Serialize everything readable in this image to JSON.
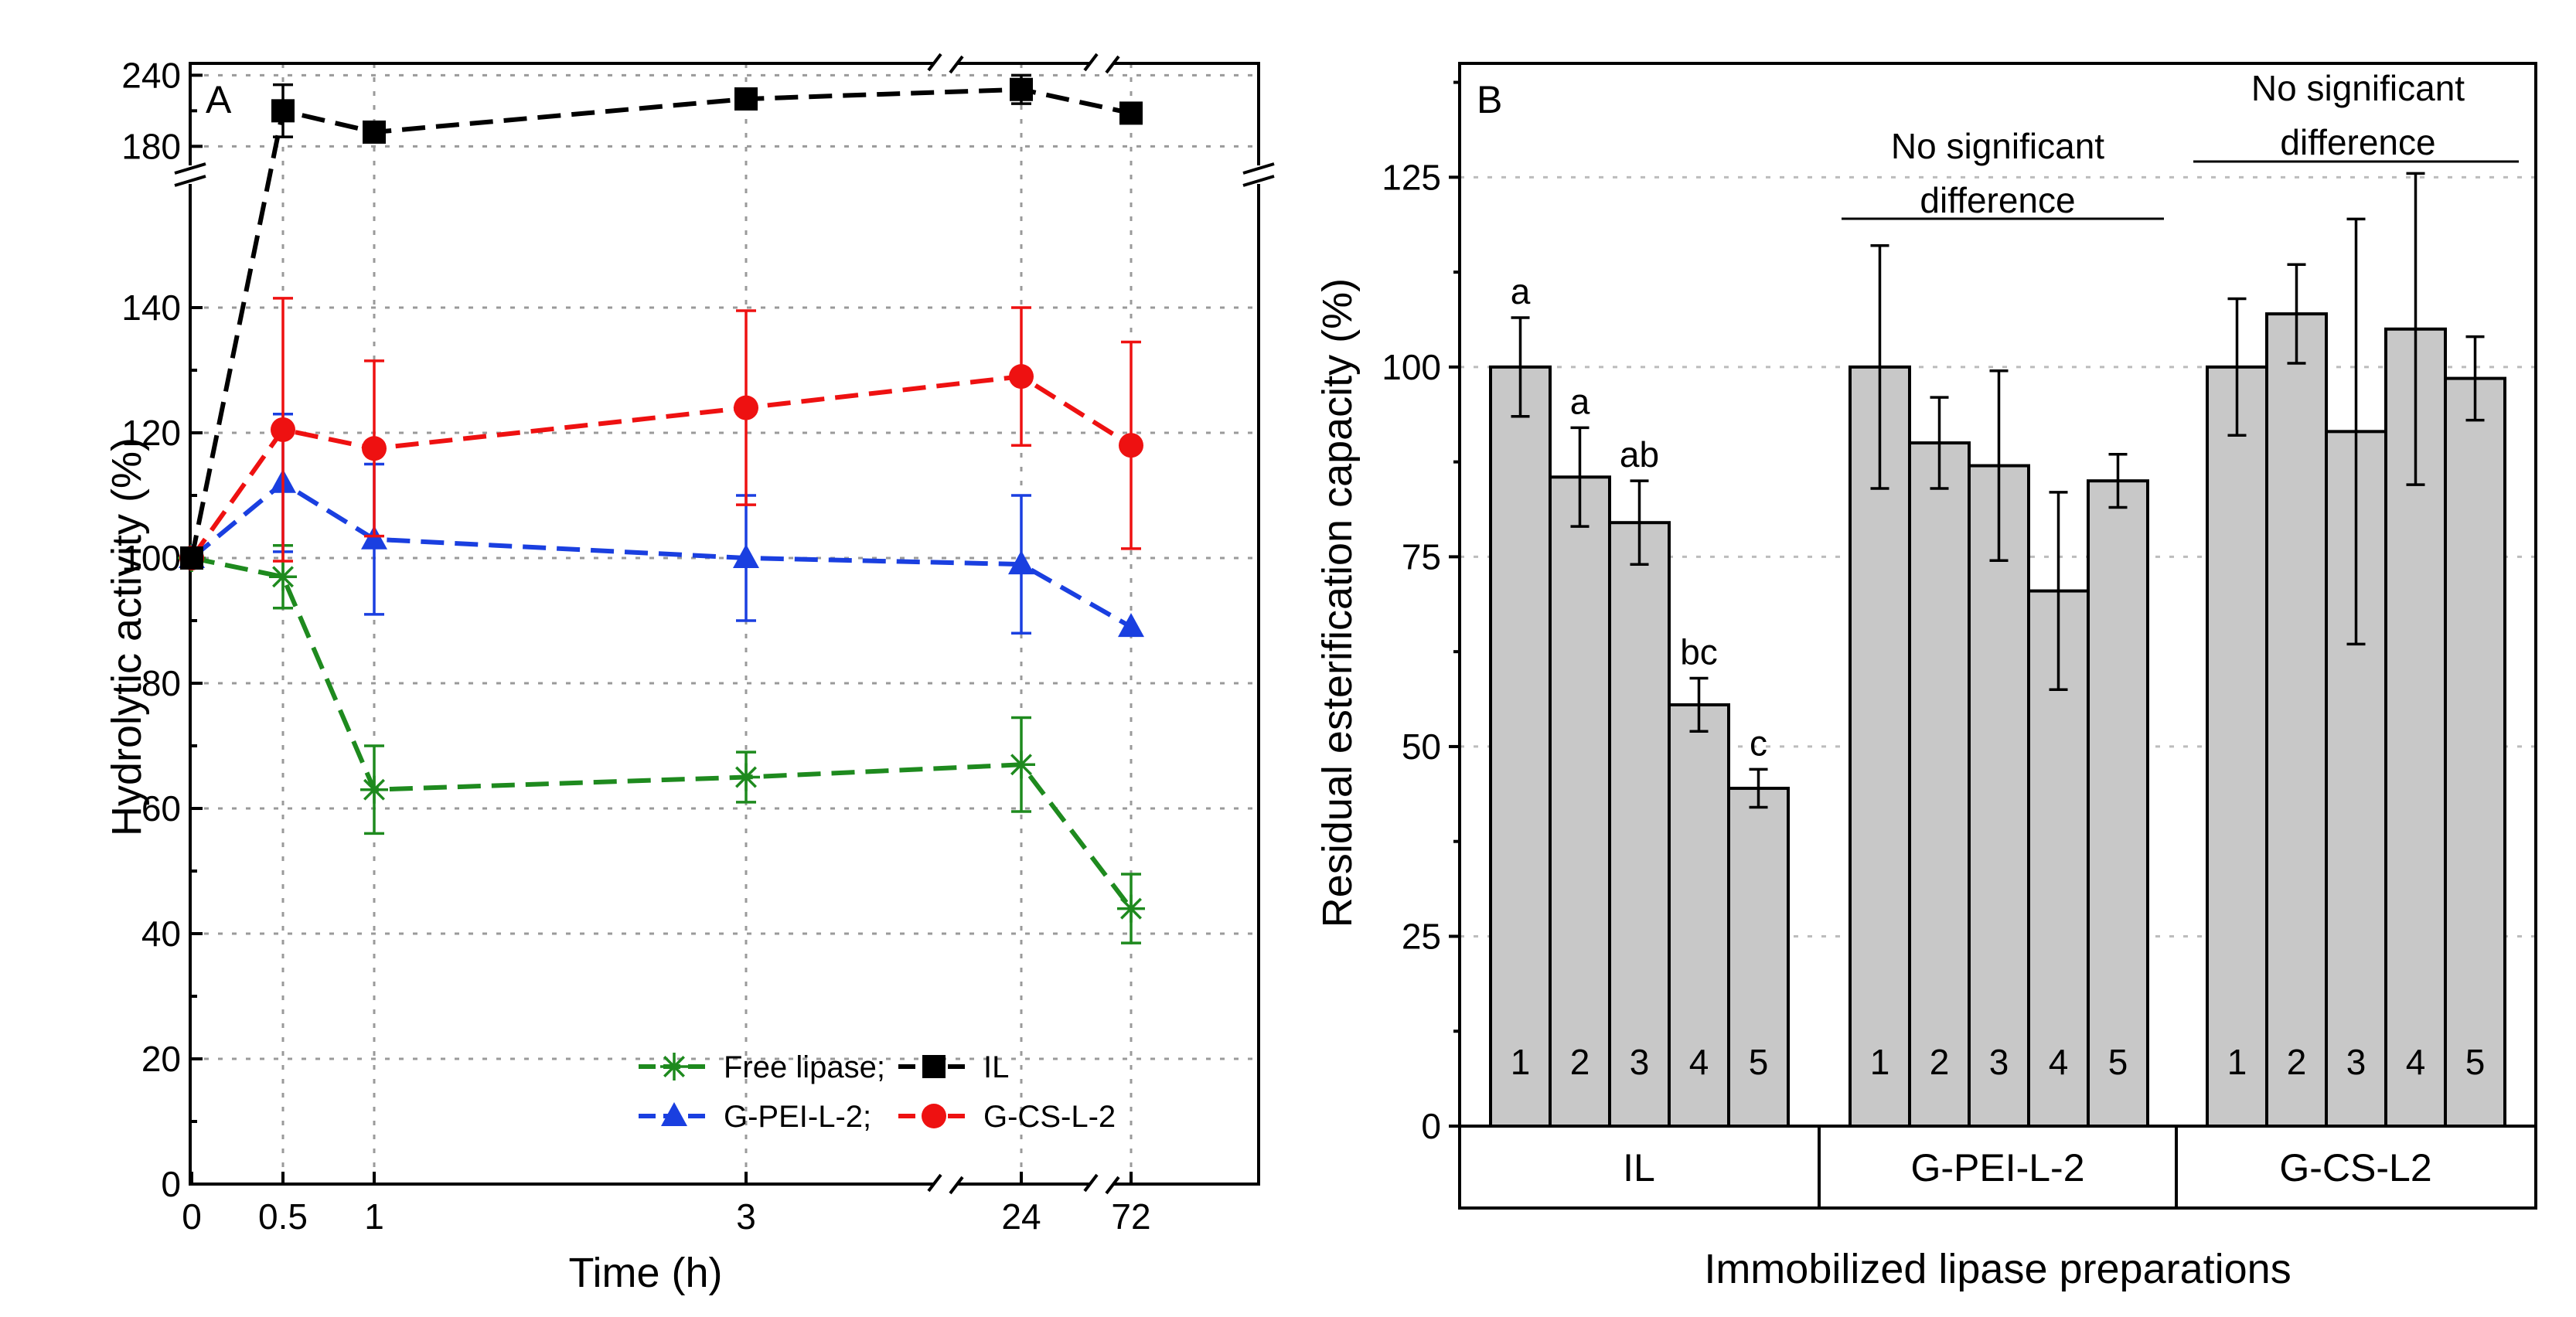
{
  "chart_data": [
    {
      "panel": "A",
      "type": "line",
      "xlabel": "Time (h)",
      "ylabel": "Hydrolytic activity (%)",
      "x_ticks": [
        "0",
        "0.5",
        "1",
        "3",
        "24",
        "72"
      ],
      "y_ticks_lower": [
        0,
        20,
        40,
        60,
        80,
        100,
        120,
        140
      ],
      "y_ticks_upper": [
        180,
        240
      ],
      "ylim_lower": [
        0,
        160
      ],
      "ylim_upper": [
        160,
        250
      ],
      "grid": true,
      "legend": {
        "position": "bottom-right",
        "rows": [
          [
            "Free lipase;",
            "IL"
          ],
          [
            "G-PEI-L-2;",
            "G-CS-L-2"
          ]
        ]
      },
      "series": [
        {
          "name": "Free lipase",
          "color": "#1e8a1e",
          "marker": "asterisk",
          "x": [
            "0",
            "0.5",
            "1",
            "3",
            "24",
            "72"
          ],
          "values": [
            100,
            97,
            63,
            65,
            67,
            44
          ],
          "errors": [
            0,
            5,
            7,
            4,
            7.5,
            5.5
          ]
        },
        {
          "name": "IL",
          "color": "#000000",
          "marker": "square",
          "x": [
            "0",
            "0.5",
            "1",
            "3",
            "24",
            "72"
          ],
          "values": [
            100,
            210,
            192,
            220,
            228,
            208
          ],
          "errors": [
            0,
            22,
            0,
            0,
            12,
            0
          ]
        },
        {
          "name": "G-PEI-L-2",
          "color": "#1a3fe0",
          "marker": "triangle",
          "x": [
            "0",
            "0.5",
            "1",
            "3",
            "24",
            "72"
          ],
          "values": [
            100,
            112,
            103,
            100,
            99,
            89
          ],
          "errors": [
            0,
            11,
            12,
            10,
            11,
            0
          ]
        },
        {
          "name": "G-CS-L-2",
          "color": "#ee1111",
          "marker": "circle",
          "x": [
            "0",
            "0.5",
            "1",
            "3",
            "24",
            "72"
          ],
          "values": [
            100,
            120.5,
            117.5,
            124,
            129,
            118
          ],
          "errors": [
            0,
            21,
            14,
            15.5,
            11,
            16.5
          ]
        }
      ]
    },
    {
      "panel": "B",
      "type": "bar",
      "xlabel": "Immobilized lipase preparations",
      "ylabel": "Residual esterification capacity (%)",
      "y_ticks": [
        0,
        25,
        50,
        75,
        100,
        125
      ],
      "ylim": [
        0,
        140
      ],
      "grid": true,
      "bar_color": "#c8c8c8",
      "groups": [
        {
          "label": "IL",
          "bars": [
            "1",
            "2",
            "3",
            "4",
            "5"
          ],
          "values": [
            100,
            85.5,
            79.5,
            55.5,
            44.5
          ],
          "errors": [
            6.5,
            6.5,
            5.5,
            3.5,
            2.5
          ],
          "letters": [
            "a",
            "a",
            "ab",
            "bc",
            "c"
          ],
          "note": ""
        },
        {
          "label": "G-PEI-L-2",
          "bars": [
            "1",
            "2",
            "3",
            "4",
            "5"
          ],
          "values": [
            100,
            90,
            87,
            70.5,
            85
          ],
          "errors": [
            16,
            6,
            12.5,
            13,
            3.5
          ],
          "letters": [
            "",
            "",
            "",
            "",
            ""
          ],
          "note": [
            "No significant",
            "difference"
          ]
        },
        {
          "label": "G-CS-L2",
          "bars": [
            "1",
            "2",
            "3",
            "4",
            "5"
          ],
          "values": [
            100,
            107,
            91.5,
            105,
            98.5
          ],
          "errors": [
            9,
            6.5,
            28,
            20.5,
            5.5
          ],
          "letters": [
            "",
            "",
            "",
            "",
            ""
          ],
          "note": [
            "No significant",
            "difference"
          ]
        }
      ]
    }
  ]
}
